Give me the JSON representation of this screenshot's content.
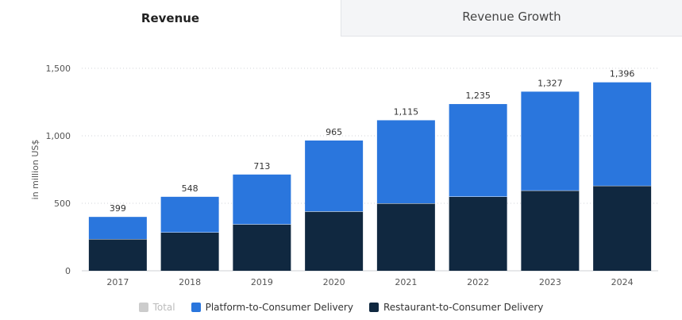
{
  "tabs": [
    {
      "label": "Revenue",
      "active": true
    },
    {
      "label": "Revenue Growth",
      "active": false
    }
  ],
  "chart_data": {
    "type": "bar",
    "stacked": true,
    "title": "",
    "xlabel": "",
    "ylabel": "in million US$",
    "ylim": [
      0,
      1500
    ],
    "yticks": [
      0,
      500,
      1000,
      1500
    ],
    "ytick_labels": [
      "0",
      "500",
      "1,000",
      "1,500"
    ],
    "categories": [
      "2017",
      "2018",
      "2019",
      "2020",
      "2021",
      "2022",
      "2023",
      "2024"
    ],
    "series": [
      {
        "name": "Restaurant-to-Consumer Delivery",
        "color": "#102840",
        "values": [
          235,
          285,
          345,
          440,
          500,
          550,
          595,
          630
        ]
      },
      {
        "name": "Platform-to-Consumer Delivery",
        "color": "#2a76dd",
        "values": [
          164,
          263,
          368,
          525,
          615,
          685,
          732,
          766
        ]
      }
    ],
    "totals": [
      399,
      548,
      713,
      965,
      1115,
      1235,
      1327,
      1396
    ],
    "total_labels": [
      "399",
      "548",
      "713",
      "965",
      "1,115",
      "1,235",
      "1,327",
      "1,396"
    ],
    "grid": true
  },
  "legend": [
    {
      "label": "Total",
      "color": "#cccccc",
      "disabled": true
    },
    {
      "label": "Platform-to-Consumer Delivery",
      "color": "#2a76dd",
      "disabled": false
    },
    {
      "label": "Restaurant-to-Consumer Delivery",
      "color": "#102840",
      "disabled": false
    }
  ]
}
